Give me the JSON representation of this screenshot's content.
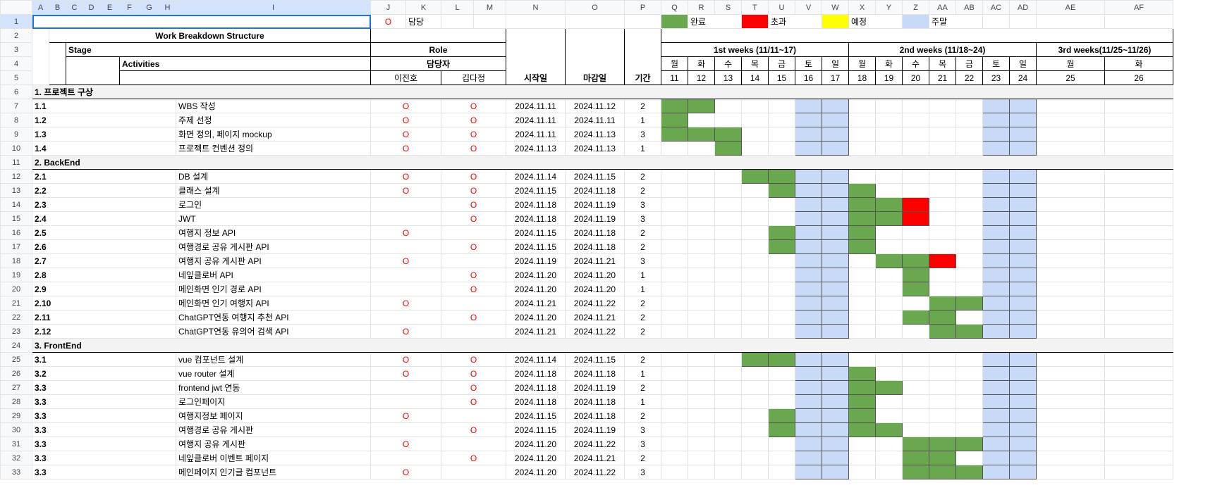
{
  "colLetters": [
    "",
    "A",
    "B",
    "C",
    "D",
    "E",
    "F",
    "G",
    "H",
    "I",
    "J",
    "K",
    "L",
    "M",
    "N",
    "O",
    "P",
    "Q",
    "R",
    "S",
    "T",
    "U",
    "V",
    "W",
    "X",
    "Y",
    "Z",
    "AA",
    "AB",
    "AC",
    "AD",
    "AE",
    "AF"
  ],
  "legend": {
    "o_mark": "O",
    "owner_label": "담당",
    "done": "완료",
    "over": "초과",
    "planned": "예정",
    "weekend": "주말",
    "colors": {
      "done": "#6aa84f",
      "over": "#ff0000",
      "planned": "#ffff00",
      "weekend": "#c9daf8"
    }
  },
  "headers": {
    "wbs": "Work Breakdown Structure",
    "stage": "Stage",
    "activities": "Activities",
    "role": "Role",
    "owner": "담당자",
    "person1": "이진호",
    "person2": "김다정",
    "start": "시작일",
    "end": "마감일",
    "duration": "기간",
    "week1": "1st weeks (11/11~17)",
    "week2": "2nd weeks (11/18~24)",
    "week3": "3rd weeks(11/25~11/26)",
    "days": [
      "월",
      "화",
      "수",
      "목",
      "금",
      "토",
      "일",
      "월",
      "화",
      "수",
      "목",
      "금",
      "토",
      "일",
      "월",
      "화"
    ],
    "dates": [
      "11",
      "12",
      "13",
      "14",
      "15",
      "16",
      "17",
      "18",
      "19",
      "20",
      "21",
      "22",
      "23",
      "24",
      "25",
      "26"
    ]
  },
  "rows": [
    {
      "section": "1. 프로젝트 구상"
    },
    {
      "id": "1.1",
      "name": "WBS 작성",
      "p1": "O",
      "p2": "O",
      "start": "2024.11.11",
      "end": "2024.11.12",
      "dur": "2",
      "bars": "gg.........."
    },
    {
      "id": "1.2",
      "name": "주제 선정",
      "p1": "O",
      "p2": "O",
      "start": "2024.11.11",
      "end": "2024.11.11",
      "dur": "1",
      "bars": "g..........."
    },
    {
      "id": "1.3",
      "name": "화면 정의, 페이지 mockup",
      "p1": "O",
      "p2": "O",
      "start": "2024.11.11",
      "end": "2024.11.13",
      "dur": "3",
      "bars": "ggg........."
    },
    {
      "id": "1.4",
      "name": "프로젝트 컨벤션 정의",
      "p1": "O",
      "p2": "O",
      "start": "2024.11.13",
      "end": "2024.11.13",
      "dur": "1",
      "bars": "..g........."
    },
    {
      "section": "2. BackEnd"
    },
    {
      "id": "2.1",
      "name": "DB 설계",
      "p1": "O",
      "p2": "O",
      "start": "2024.11.14",
      "end": "2024.11.15",
      "dur": "2",
      "bars": "...gg......."
    },
    {
      "id": "2.2",
      "name": "클래스 설계",
      "p1": "O",
      "p2": "O",
      "start": "2024.11.15",
      "end": "2024.11.18",
      "dur": "2",
      "bars": "....g..g...."
    },
    {
      "id": "2.3",
      "name": "로그인",
      "p1": "",
      "p2": "O",
      "start": "2024.11.18",
      "end": "2024.11.19",
      "dur": "3",
      "bars": ".......ggr.."
    },
    {
      "id": "2.4",
      "name": "JWT",
      "p1": "",
      "p2": "O",
      "start": "2024.11.18",
      "end": "2024.11.19",
      "dur": "3",
      "bars": ".......ggr.."
    },
    {
      "id": "2.5",
      "name": "여행지 정보 API",
      "p1": "O",
      "p2": "",
      "start": "2024.11.15",
      "end": "2024.11.18",
      "dur": "2",
      "bars": "....g..g...."
    },
    {
      "id": "2.6",
      "name": "여행경로 공유 게시판 API",
      "p1": "",
      "p2": "O",
      "start": "2024.11.15",
      "end": "2024.11.18",
      "dur": "2",
      "bars": "....g..g...."
    },
    {
      "id": "2.7",
      "name": "여행지 공유 게시판 API",
      "p1": "O",
      "p2": "",
      "start": "2024.11.19",
      "end": "2024.11.21",
      "dur": "3",
      "bars": "........ggr."
    },
    {
      "id": "2.8",
      "name": "네잎클로버 API",
      "p1": "",
      "p2": "O",
      "start": "2024.11.20",
      "end": "2024.11.20",
      "dur": "1",
      "bars": ".........g.."
    },
    {
      "id": "2.9",
      "name": "메인화면 인기 경로 API",
      "p1": "",
      "p2": "O",
      "start": "2024.11.20",
      "end": "2024.11.20",
      "dur": "1",
      "bars": ".........g.."
    },
    {
      "id": "2.10",
      "name": "메인화면 인기 여행지 API",
      "p1": "O",
      "p2": "",
      "start": "2024.11.21",
      "end": "2024.11.22",
      "dur": "2",
      "bars": "..........gg"
    },
    {
      "id": "2.11",
      "name": "ChatGPT연동 여행지 추천 API",
      "p1": "",
      "p2": "O",
      "start": "2024.11.20",
      "end": "2024.11.21",
      "dur": "2",
      "bars": ".........gg."
    },
    {
      "id": "2.12",
      "name": "ChatGPT연동 유의어 검색 API",
      "p1": "O",
      "p2": "",
      "start": "2024.11.21",
      "end": "2024.11.22",
      "dur": "2",
      "bars": "..........gg"
    },
    {
      "section": "3. FrontEnd"
    },
    {
      "id": "3.1",
      "name": "vue 컴포넌트 설계",
      "p1": "O",
      "p2": "O",
      "start": "2024.11.14",
      "end": "2024.11.15",
      "dur": "2",
      "bars": "...gg......."
    },
    {
      "id": "3.2",
      "name": "vue router 설계",
      "p1": "O",
      "p2": "O",
      "start": "2024.11.18",
      "end": "2024.11.18",
      "dur": "1",
      "bars": ".......g...."
    },
    {
      "id": "3.3",
      "name": "frontend jwt 연동",
      "p1": "",
      "p2": "O",
      "start": "2024.11.18",
      "end": "2024.11.19",
      "dur": "2",
      "bars": ".......gg..."
    },
    {
      "id": "3.3",
      "name": "로그인페이지",
      "p1": "",
      "p2": "O",
      "start": "2024.11.18",
      "end": "2024.11.18",
      "dur": "1",
      "bars": ".......g...."
    },
    {
      "id": "3.3",
      "name": "여행지정보 페이지",
      "p1": "O",
      "p2": "",
      "start": "2024.11.15",
      "end": "2024.11.18",
      "dur": "2",
      "bars": "....g..g...."
    },
    {
      "id": "3.3",
      "name": "여행경로 공유 게시판",
      "p1": "",
      "p2": "O",
      "start": "2024.11.15",
      "end": "2024.11.19",
      "dur": "3",
      "bars": "....g..gg..."
    },
    {
      "id": "3.3",
      "name": "여행지 공유 게시판",
      "p1": "O",
      "p2": "",
      "start": "2024.11.20",
      "end": "2024.11.22",
      "dur": "3",
      "bars": ".........ggg"
    },
    {
      "id": "3.3",
      "name": "네잎클로버 이벤트 페이지",
      "p1": "",
      "p2": "O",
      "start": "2024.11.20",
      "end": "2024.11.21",
      "dur": "2",
      "bars": ".........gg."
    },
    {
      "id": "3.3",
      "name": "메인페이지 인기글 컴포넌트",
      "p1": "O",
      "p2": "",
      "start": "2024.11.20",
      "end": "2024.11.22",
      "dur": "3",
      "bars": ".........ggg"
    }
  ]
}
